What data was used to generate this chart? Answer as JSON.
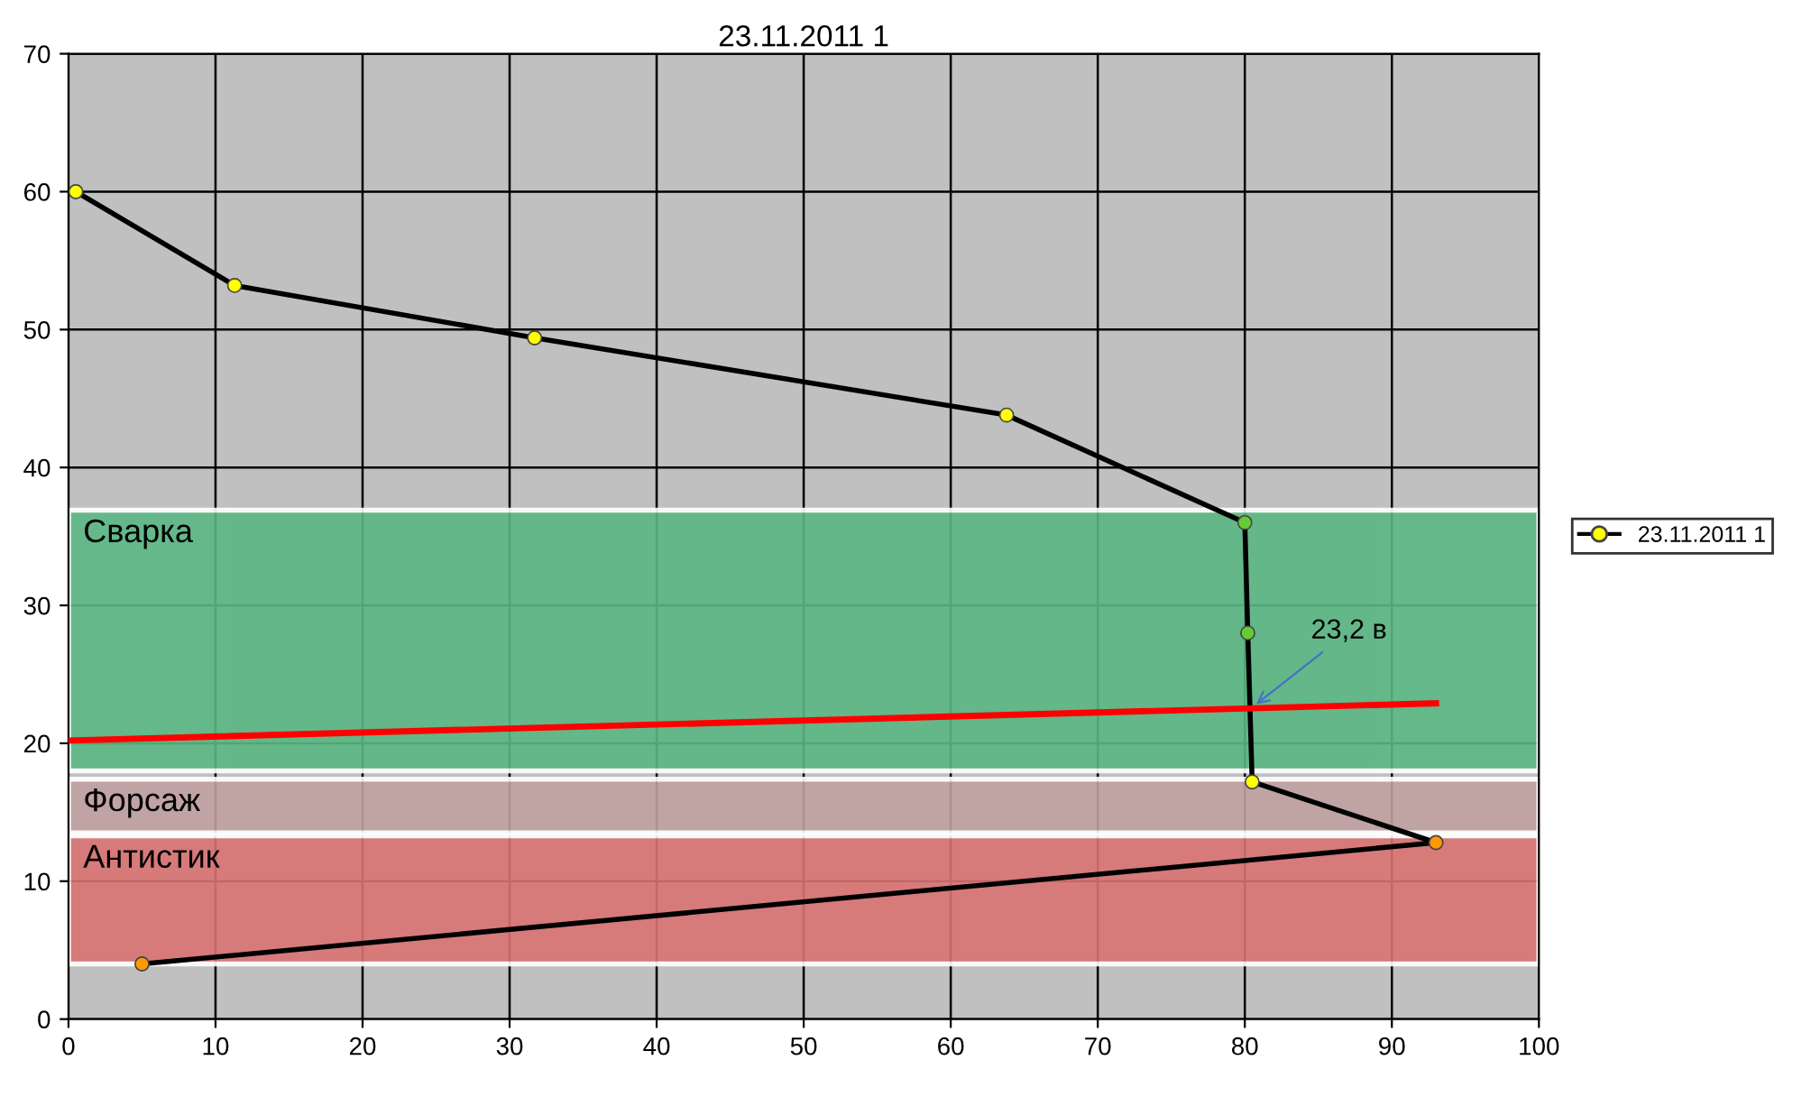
{
  "chart_data": {
    "type": "line",
    "title": "23.11.2011 1",
    "x": [
      0.5,
      11.3,
      31.7,
      63.8,
      80,
      80.2,
      80.5,
      93,
      5
    ],
    "series": [
      {
        "name": "23.11.2011 1",
        "color": "#000000",
        "colors": [
          "#ffff00",
          "#ffff00",
          "#ffff00",
          "#ffff00",
          "#66cc33",
          "#66cc33",
          "#ffff00",
          "#ff9900",
          "#ff9900"
        ],
        "values": [
          60,
          53.2,
          49.4,
          43.8,
          36,
          28,
          17.2,
          12.8,
          4
        ],
        "marker": "circle"
      },
      {
        "x": [
          0,
          93
        ],
        "color": "#ff0000",
        "values": [
          20.2,
          22.9
        ],
        "marker": "none"
      }
    ],
    "xlim": [
      0,
      100
    ],
    "xticks": [
      0,
      10,
      20,
      30,
      40,
      50,
      60,
      70,
      80,
      90,
      100
    ],
    "ylim": [
      0,
      70
    ],
    "yticks": [
      0,
      10,
      20,
      30,
      40,
      50,
      60,
      70
    ],
    "bands": [
      {
        "axis": "y",
        "from": 18,
        "to": 36.9,
        "label": "Сварка",
        "color": "#5ab784"
      },
      {
        "axis": "y",
        "from": 13.5,
        "to": 17.4,
        "label": "Форсаж",
        "color": "#c0a0a0"
      },
      {
        "axis": "y",
        "from": 4,
        "to": 13.3,
        "label": "Антистик",
        "color": "#d97373"
      }
    ],
    "annotations": [
      {
        "text": "23,2 в",
        "x": 80.5,
        "y": 22.6
      }
    ],
    "grid": true,
    "legend": "right"
  }
}
